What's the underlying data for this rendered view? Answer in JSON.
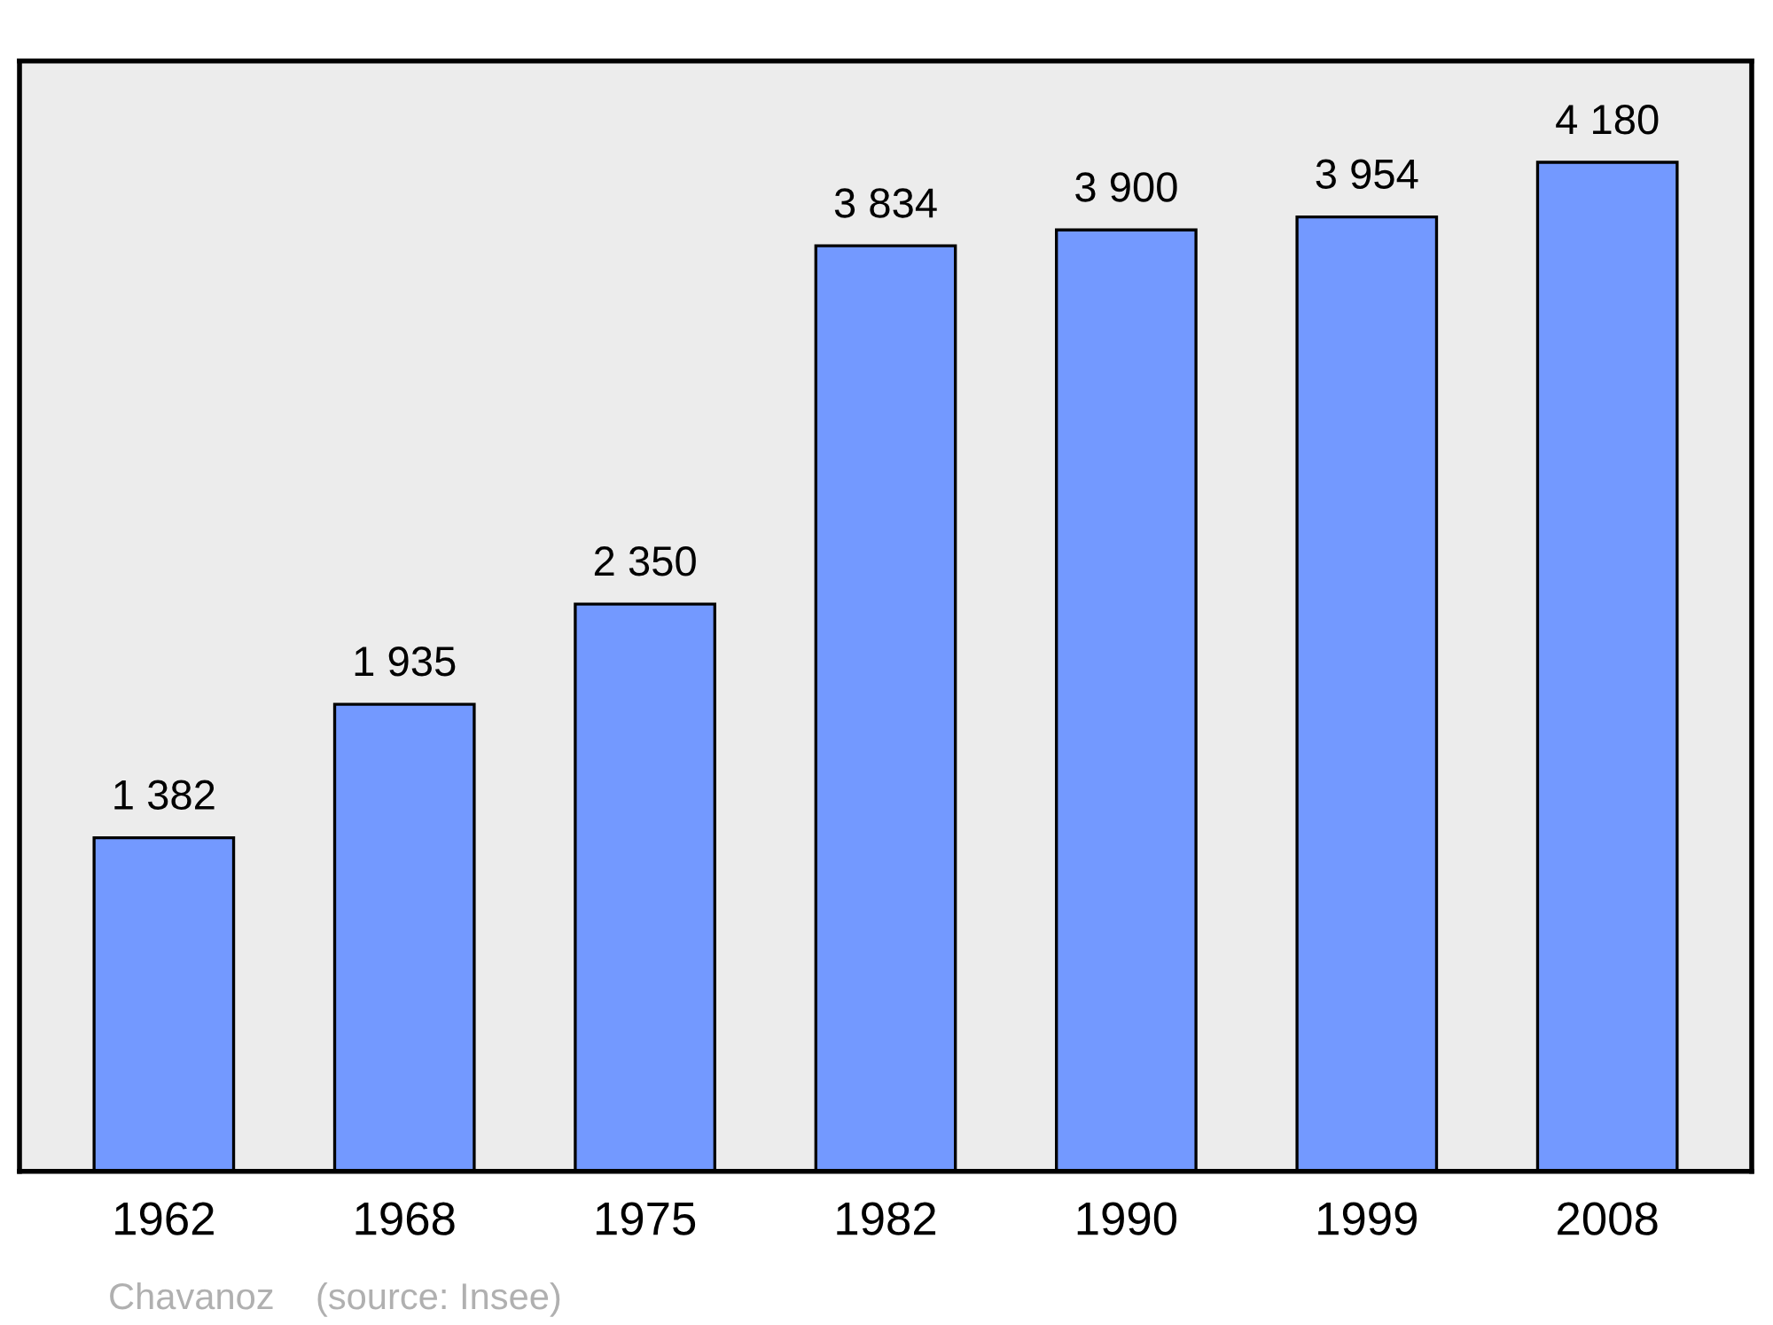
{
  "chart_data": {
    "type": "bar",
    "categories": [
      "1962",
      "1968",
      "1975",
      "1982",
      "1990",
      "1999",
      "2008"
    ],
    "values": [
      1382,
      1935,
      2350,
      3834,
      3900,
      3954,
      4180
    ],
    "value_labels": [
      "1 382",
      "1 935",
      "2 350",
      "3 834",
      "3 900",
      "3 954",
      "4 180"
    ],
    "color": "#7399ff",
    "ylim": [
      0,
      4600
    ],
    "tick_labels": "x",
    "grid": false,
    "legend": false,
    "annotations": [
      "Chavanoz    (source: Insee)"
    ]
  }
}
